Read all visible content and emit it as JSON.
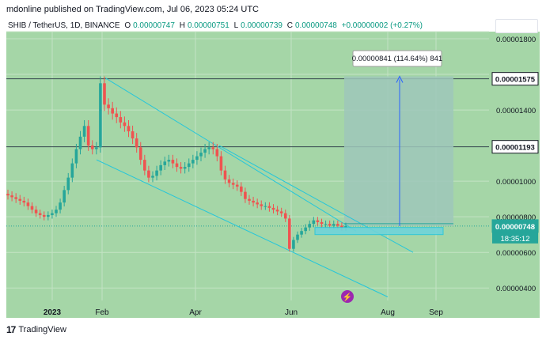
{
  "header": {
    "caption": "mdonline published on TradingView.com, Jul 06, 2023 05:24 UTC"
  },
  "legend": {
    "symbol": "SHIB / TetherUS, 1D, BINANCE",
    "o_label": "O",
    "o": "0.00000747",
    "h_label": "H",
    "h": "0.00000751",
    "l_label": "L",
    "l": "0.00000739",
    "c_label": "C",
    "c": "0.00000748",
    "change": "+0.00000002 (+0.27%)"
  },
  "footer": {
    "logo": "17",
    "brand": "TradingView"
  },
  "colors": {
    "background": "#a5d6a7",
    "up": "#26a69a",
    "down": "#ef5350",
    "channel": "#26c6da",
    "target_box": "#9ec7ba",
    "arrow": "#2962ff"
  },
  "chart_data": {
    "type": "candlestick",
    "x_ticks": [
      "2023",
      "Feb",
      "Apr",
      "Jun",
      "Aug",
      "Sep"
    ],
    "y_ticks": [
      "0.00001800",
      "0.00001600",
      "0.00001400",
      "0.00001000",
      "0.00000800",
      "0.00000600",
      "0.00000400"
    ],
    "ylim": [
      3.3e-06,
      1.84e-05
    ],
    "price_labels": [
      {
        "text": "0.00001575",
        "value": 1.575e-05
      },
      {
        "text": "0.00001193",
        "value": 1.193e-05
      },
      {
        "text": "0.00000748",
        "value": 7.48e-06
      }
    ],
    "countdown": "18:35:12",
    "measure_label": "0.00000841 (114.64%) 841",
    "series": [
      {
        "name": "SHIB / TetherUS",
        "close": [
          9.2e-06,
          9.1e-06,
          9e-06,
          8.9e-06,
          8.8e-06,
          8.6e-06,
          8.4e-06,
          8.2e-06,
          8.1e-06,
          8e-06,
          8.1e-06,
          8.2e-06,
          8.4e-06,
          8.8e-06,
          9.5e-06,
          1.02e-05,
          1.1e-05,
          1.18e-05,
          1.25e-05,
          1.31e-05,
          1.2e-05,
          1.18e-05,
          1.19e-05,
          1.55e-05,
          1.43e-05,
          1.41e-05,
          1.38e-05,
          1.36e-05,
          1.33e-05,
          1.31e-05,
          1.28e-05,
          1.24e-05,
          1.19e-05,
          1.12e-05,
          1.06e-05,
          1.02e-05,
          1.03e-05,
          1.06e-05,
          1.09e-05,
          1.11e-05,
          1.12e-05,
          1.1e-05,
          1.08e-05,
          1.07e-05,
          1.08e-05,
          1.1e-05,
          1.12e-05,
          1.14e-05,
          1.16e-05,
          1.18e-05,
          1.19e-05,
          1.18e-05,
          1.14e-05,
          1.06e-05,
          1.01e-05,
          9.9e-06,
          9.8e-06,
          9.7e-06,
          9.4e-06,
          9e-06,
          8.9e-06,
          8.8e-06,
          8.7e-06,
          8.6e-06,
          8.6e-06,
          8.5e-06,
          8.4e-06,
          8.3e-06,
          8.2e-06,
          7.9e-06,
          6.2e-06,
          6.7e-06,
          7e-06,
          7.2e-06,
          7.4e-06,
          7.6e-06,
          7.8e-06,
          7.7e-06,
          7.6e-06,
          7.6e-06,
          7.5e-06,
          7.6e-06,
          7.5e-06,
          7.4e-06,
          7.48e-06
        ]
      }
    ]
  }
}
